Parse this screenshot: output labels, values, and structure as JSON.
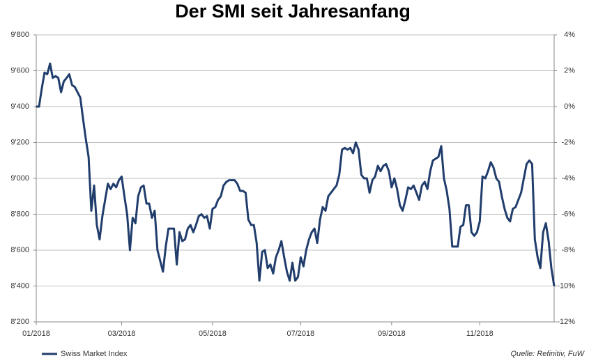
{
  "chart_data": {
    "type": "line",
    "title": "Der SMI seit Jahresanfang",
    "source": "Quelle: Refinitiv, FuW",
    "xlim": [
      0,
      188
    ],
    "xticks": [
      {
        "value": 0,
        "label": "01/2018"
      },
      {
        "value": 31,
        "label": "03/2018"
      },
      {
        "value": 64,
        "label": "05/2018"
      },
      {
        "value": 96,
        "label": "07/2018"
      },
      {
        "value": 129,
        "label": "09/2018"
      },
      {
        "value": 161,
        "label": "11/2018"
      }
    ],
    "ylim": [
      8200,
      9800
    ],
    "yticks": [
      {
        "value": 8200,
        "label": "8'200"
      },
      {
        "value": 8400,
        "label": "8'400"
      },
      {
        "value": 8600,
        "label": "8'600"
      },
      {
        "value": 8800,
        "label": "8'800"
      },
      {
        "value": 9000,
        "label": "9'000"
      },
      {
        "value": 9200,
        "label": "9'200"
      },
      {
        "value": 9400,
        "label": "9'400"
      },
      {
        "value": 9600,
        "label": "9'600"
      },
      {
        "value": 9800,
        "label": "9'800"
      }
    ],
    "y2lim": [
      -12,
      4
    ],
    "y2ticks": [
      {
        "value": -12,
        "label": "-12%"
      },
      {
        "value": -10,
        "label": "-10%"
      },
      {
        "value": -8,
        "label": "-8%"
      },
      {
        "value": -6,
        "label": "-6%"
      },
      {
        "value": -4,
        "label": "-4%"
      },
      {
        "value": -2,
        "label": "-2%"
      },
      {
        "value": 0,
        "label": "0%"
      },
      {
        "value": 2,
        "label": "2%"
      },
      {
        "value": 4,
        "label": "4%"
      }
    ],
    "grid": true,
    "legend": "bottom-left",
    "series": [
      {
        "name": "Swiss Market Index",
        "color": "#203d6c",
        "values": [
          9400,
          9400,
          9500,
          9590,
          9580,
          9640,
          9560,
          9570,
          9560,
          9480,
          9540,
          9560,
          9580,
          9520,
          9510,
          9480,
          9450,
          9330,
          9220,
          9120,
          8820,
          8960,
          8740,
          8660,
          8790,
          8880,
          8970,
          8940,
          8970,
          8950,
          8990,
          9010,
          8900,
          8800,
          8600,
          8780,
          8750,
          8900,
          8950,
          8960,
          8860,
          8860,
          8780,
          8820,
          8600,
          8540,
          8480,
          8620,
          8720,
          8720,
          8720,
          8520,
          8700,
          8650,
          8660,
          8720,
          8740,
          8700,
          8740,
          8790,
          8800,
          8780,
          8790,
          8720,
          8830,
          8840,
          8880,
          8900,
          8960,
          8980,
          8990,
          8990,
          8990,
          8970,
          8930,
          8930,
          8920,
          8770,
          8740,
          8740,
          8640,
          8430,
          8590,
          8600,
          8500,
          8520,
          8470,
          8560,
          8600,
          8650,
          8560,
          8480,
          8430,
          8530,
          8430,
          8450,
          8560,
          8510,
          8600,
          8660,
          8700,
          8720,
          8640,
          8770,
          8840,
          8820,
          8900,
          8920,
          8940,
          8960,
          9020,
          9160,
          9170,
          9160,
          9170,
          9140,
          9200,
          9160,
          9020,
          9000,
          9000,
          8920,
          8990,
          9010,
          9070,
          9040,
          9070,
          9080,
          9040,
          8950,
          9000,
          8940,
          8850,
          8820,
          8880,
          8950,
          8940,
          8960,
          8920,
          8880,
          8960,
          8980,
          8940,
          9040,
          9100,
          9110,
          9120,
          9180,
          9000,
          8930,
          8830,
          8620,
          8620,
          8620,
          8730,
          8740,
          8850,
          8850,
          8700,
          8680,
          8700,
          8760,
          9010,
          9000,
          9040,
          9090,
          9060,
          9000,
          8980,
          8900,
          8830,
          8780,
          8760,
          8830,
          8840,
          8880,
          8920,
          9000,
          9080,
          9100,
          9080,
          8660,
          8560,
          8500,
          8700,
          8750,
          8650,
          8500,
          8400
        ]
      }
    ]
  }
}
